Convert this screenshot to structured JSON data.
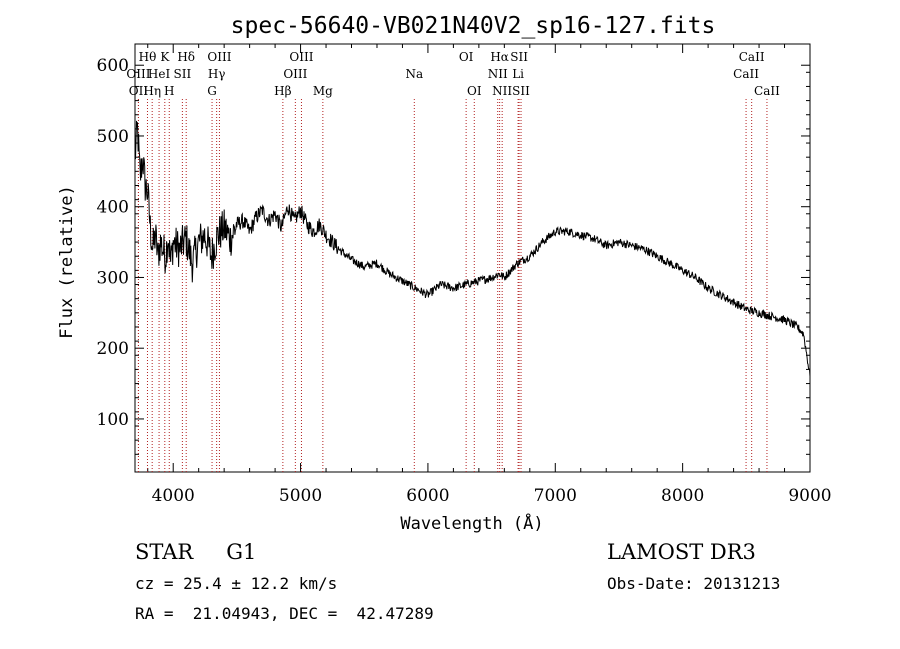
{
  "chart_data": {
    "type": "line",
    "title": "spec-56640-VB021N40V2_sp16-127.fits",
    "xlabel": "Wavelength (Å)",
    "ylabel": "Flux (relative)",
    "xlim": [
      3700,
      9000
    ],
    "ylim": [
      25,
      630
    ],
    "x_ticks": [
      4000,
      5000,
      6000,
      7000,
      8000,
      9000
    ],
    "y_ticks": [
      100,
      200,
      300,
      400,
      500,
      600
    ],
    "series": [
      {
        "name": "flux",
        "x": [
          3700,
          3720,
          3740,
          3760,
          3780,
          3800,
          3820,
          3840,
          3860,
          3880,
          3900,
          3920,
          3940,
          3960,
          3980,
          4000,
          4050,
          4100,
          4150,
          4200,
          4250,
          4300,
          4350,
          4400,
          4450,
          4500,
          4550,
          4600,
          4650,
          4700,
          4750,
          4800,
          4850,
          4900,
          4950,
          5000,
          5050,
          5100,
          5150,
          5200,
          5300,
          5400,
          5500,
          5600,
          5700,
          5800,
          5900,
          6000,
          6100,
          6200,
          6300,
          6400,
          6500,
          6560,
          6600,
          6700,
          6800,
          6900,
          7000,
          7100,
          7200,
          7300,
          7400,
          7500,
          7600,
          7700,
          7800,
          7900,
          8000,
          8100,
          8200,
          8300,
          8400,
          8500,
          8600,
          8700,
          8800,
          8900,
          8950,
          9000
        ],
        "y": [
          470,
          510,
          440,
          470,
          430,
          420,
          370,
          340,
          360,
          330,
          350,
          340,
          330,
          360,
          320,
          350,
          340,
          355,
          320,
          350,
          360,
          330,
          360,
          370,
          355,
          375,
          380,
          365,
          385,
          395,
          380,
          390,
          370,
          400,
          380,
          395,
          375,
          365,
          375,
          360,
          340,
          325,
          315,
          320,
          305,
          295,
          285,
          275,
          290,
          285,
          290,
          295,
          300,
          305,
          300,
          320,
          330,
          350,
          365,
          365,
          360,
          355,
          345,
          350,
          345,
          340,
          330,
          320,
          310,
          300,
          285,
          275,
          265,
          255,
          250,
          245,
          240,
          230,
          220,
          160
        ]
      }
    ],
    "emission_lines": [
      {
        "label": "OII",
        "wl": 3727,
        "row": 3
      },
      {
        "label": "Hθ",
        "wl": 3798,
        "row": 1
      },
      {
        "label": "OIII",
        "wl": 3727,
        "row": 2
      },
      {
        "label": "Hη",
        "wl": 3835,
        "row": 3
      },
      {
        "label": "HeI",
        "wl": 3889,
        "row": 2
      },
      {
        "label": "K",
        "wl": 3934,
        "row": 1
      },
      {
        "label": "H",
        "wl": 3969,
        "row": 3
      },
      {
        "label": "SII",
        "wl": 4072,
        "row": 2
      },
      {
        "label": "Hδ",
        "wl": 4102,
        "row": 1
      },
      {
        "label": "G",
        "wl": 4305,
        "row": 3
      },
      {
        "label": "Hγ",
        "wl": 4341,
        "row": 2
      },
      {
        "label": "OIII",
        "wl": 4363,
        "row": 1
      },
      {
        "label": "Hβ",
        "wl": 4861,
        "row": 3
      },
      {
        "label": "OIII",
        "wl": 4959,
        "row": 2
      },
      {
        "label": "OIII",
        "wl": 5007,
        "row": 1
      },
      {
        "label": "Mg",
        "wl": 5175,
        "row": 3
      },
      {
        "label": "Na",
        "wl": 5893,
        "row": 2
      },
      {
        "label": "OI",
        "wl": 6300,
        "row": 1
      },
      {
        "label": "OI",
        "wl": 6364,
        "row": 3
      },
      {
        "label": "NII",
        "wl": 6548,
        "row": 2
      },
      {
        "label": "Hα",
        "wl": 6563,
        "row": 1
      },
      {
        "label": "NII",
        "wl": 6583,
        "row": 3
      },
      {
        "label": "Li",
        "wl": 6708,
        "row": 2
      },
      {
        "label": "SII",
        "wl": 6716,
        "row": 1
      },
      {
        "label": "SII",
        "wl": 6731,
        "row": 3
      },
      {
        "label": "CaII",
        "wl": 8498,
        "row": 2
      },
      {
        "label": "CaII",
        "wl": 8542,
        "row": 1
      },
      {
        "label": "CaII",
        "wl": 8662,
        "row": 3
      }
    ]
  },
  "info": {
    "class": "STAR",
    "subclass": "G1",
    "survey": "LAMOST DR3",
    "redshift": "cz = 25.4 ± 12.2 km/s",
    "obs_date": "Obs-Date: 20131213",
    "coords": "RA =  21.04943, DEC =  42.47289"
  }
}
